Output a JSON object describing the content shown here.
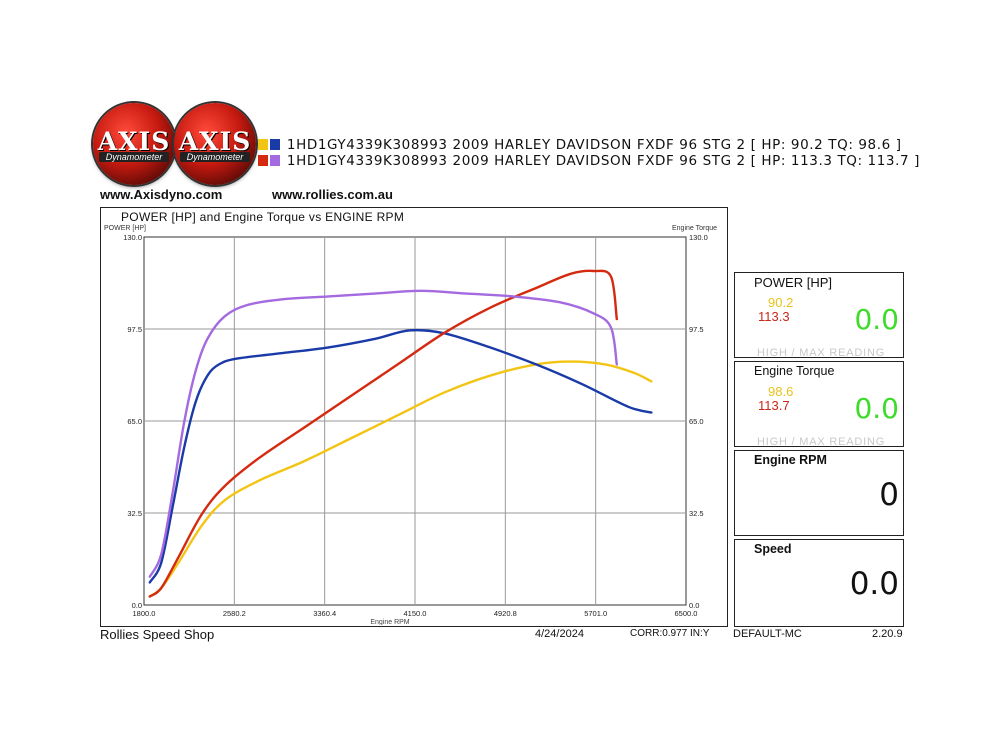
{
  "logos": {
    "brand": "AXIS",
    "tagline": "Dynamometer"
  },
  "urls": [
    "www.Axisdyno.com",
    "www.rollies.com.au"
  ],
  "legend": [
    {
      "text": "1HD1GY4339K308993 2009 HARLEY DAVIDSON FXDF 96 STG 2 [ HP: 90.2 TQ: 98.6 ]",
      "colors": [
        "#f2c414",
        "#1a3aa8"
      ]
    },
    {
      "text": "1HD1GY4339K308993 2009 HARLEY DAVIDSON FXDF 96 STG 2 [ HP: 113.3 TQ: 113.7 ]",
      "colors": [
        "#d42a10",
        "#a46ae0"
      ]
    }
  ],
  "chart_data": {
    "type": "line",
    "title": "POWER [HP] and Engine Torque vs ENGINE RPM",
    "ylabel_left": "POWER [HP]",
    "ylabel_right": "Engine Torque",
    "xlabel": "Engine RPM",
    "xlim": [
      1800,
      6500
    ],
    "ylim": [
      0,
      130
    ],
    "x_ticks": [
      "1800.0",
      "2580.2",
      "3360.4",
      "4150.0",
      "4920.8",
      "5701.0",
      "6500.0"
    ],
    "y_ticks": [
      "0.0",
      "32.5",
      "65.0",
      "97.5",
      "130.0"
    ],
    "y_ticks_right": [
      "0.0",
      "32.5",
      "65.0",
      "97.5",
      "130.0"
    ],
    "grid": true,
    "series": [
      {
        "name": "HP: 90.2",
        "color": "#f2c414",
        "x": [
          1850,
          1950,
          2100,
          2300,
          2500,
          2800,
          3200,
          3600,
          4000,
          4400,
          4800,
          5200,
          5500,
          5800,
          6050,
          6200
        ],
        "y": [
          3,
          6,
          15,
          28,
          37,
          44,
          51,
          59,
          67,
          75,
          81,
          85,
          86,
          85,
          82,
          79
        ]
      },
      {
        "name": "TQ: 98.6",
        "color": "#1a3aa8",
        "x": [
          1850,
          1950,
          2050,
          2150,
          2250,
          2350,
          2450,
          2600,
          3000,
          3400,
          3800,
          4100,
          4400,
          4800,
          5200,
          5600,
          6000,
          6200
        ],
        "y": [
          8,
          15,
          35,
          56,
          72,
          81,
          85,
          87,
          89,
          91,
          94,
          97,
          96,
          91,
          85,
          78,
          70,
          68
        ]
      },
      {
        "name": "HP: 113.3",
        "color": "#d42a10",
        "x": [
          1850,
          1950,
          2100,
          2300,
          2500,
          2800,
          3200,
          3600,
          4000,
          4400,
          4800,
          5200,
          5500,
          5700,
          5850,
          5900
        ],
        "y": [
          3,
          6,
          17,
          32,
          42,
          52,
          63,
          74,
          85,
          96,
          105,
          112,
          117,
          118,
          116,
          101
        ]
      },
      {
        "name": "TQ: 113.7",
        "color": "#a46ae0",
        "x": [
          1850,
          1950,
          2050,
          2150,
          2250,
          2350,
          2500,
          2700,
          3000,
          3400,
          3800,
          4200,
          4600,
          5000,
          5400,
          5700,
          5850,
          5900
        ],
        "y": [
          10,
          18,
          40,
          65,
          83,
          94,
          102,
          106,
          108,
          109,
          110,
          111,
          110,
          109,
          107,
          103,
          98,
          85
        ]
      }
    ]
  },
  "panels": {
    "power": {
      "title": "POWER [HP]",
      "v1": "90.2",
      "v2": "113.3",
      "current": "0.0",
      "hint": "HIGH / MAX READING"
    },
    "torque": {
      "title": "Engine Torque",
      "v1": "98.6",
      "v2": "113.7",
      "current": "0.0",
      "hint": "HIGH / MAX READING"
    },
    "rpm": {
      "title": "Engine RPM",
      "current": "0"
    },
    "speed": {
      "title": "Speed",
      "current": "0.0"
    }
  },
  "footer": {
    "shop": "Rollies Speed Shop",
    "date": "4/24/2024",
    "corr": "CORR:0.977 IN:Y",
    "profile": "DEFAULT-MC",
    "version": "2.20.9"
  }
}
